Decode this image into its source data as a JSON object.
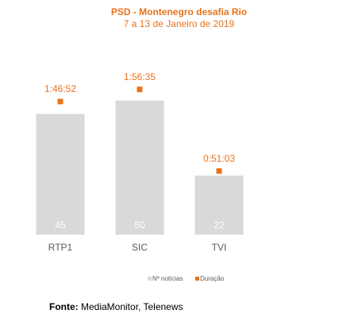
{
  "chart_data": {
    "type": "bar",
    "title": "PSD - Montenegro desafia Rio",
    "subtitle": "7 a 13 de Janeiro de 2019",
    "categories": [
      "RTP1",
      "SIC",
      "TVI"
    ],
    "series": [
      {
        "name": "Nº notícias",
        "values": [
          45,
          50,
          22
        ],
        "color": "#d9d9d9",
        "label_color": "#ffffff"
      },
      {
        "name": "Duração",
        "values": [
          "1:46:52",
          "1:56:35",
          "0:51:03"
        ],
        "seconds": [
          6412,
          6995,
          3063
        ],
        "color": "#e8731c"
      }
    ],
    "ylim": [
      0,
      65
    ],
    "grid": false,
    "legend_position": "bottom"
  },
  "source": {
    "label": "Fonte:",
    "text": " MediaMonitor, Telenews"
  }
}
